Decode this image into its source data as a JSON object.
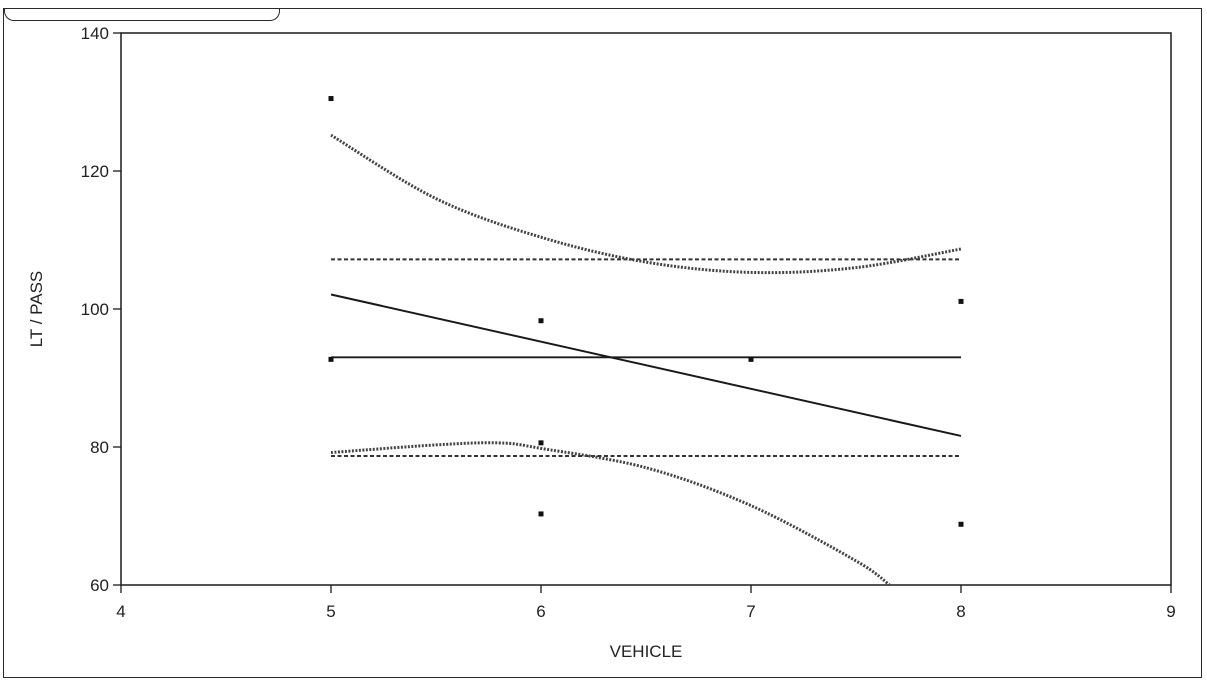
{
  "chart_data": {
    "type": "scatter",
    "xlabel": "VEHICLE",
    "ylabel": "LT / PASS",
    "xlim": [
      4,
      9
    ],
    "ylim": [
      60,
      140
    ],
    "x_ticks": [
      4,
      5,
      6,
      7,
      8,
      9
    ],
    "y_ticks": [
      60,
      80,
      100,
      120,
      140
    ],
    "grid": false,
    "points": [
      {
        "x": 5,
        "y": 130.5
      },
      {
        "x": 5,
        "y": 92.7
      },
      {
        "x": 6,
        "y": 98.3
      },
      {
        "x": 6,
        "y": 80.6
      },
      {
        "x": 6,
        "y": 70.3
      },
      {
        "x": 7,
        "y": 92.7
      },
      {
        "x": 8,
        "y": 101.1
      },
      {
        "x": 8,
        "y": 68.8
      }
    ],
    "mean_line": {
      "x": [
        5,
        8
      ],
      "y": 93.0
    },
    "mean_bounds": {
      "x": [
        5,
        8
      ],
      "upper": 107.2,
      "lower": 78.7
    },
    "regression_line": {
      "x": [
        5,
        8
      ],
      "y": [
        102.1,
        81.6
      ]
    },
    "confidence_upper": {
      "x": [
        5,
        5.5,
        6,
        6.5,
        7,
        7.5,
        8
      ],
      "y": [
        125.2,
        116.0,
        110.4,
        106.8,
        105.3,
        106.0,
        108.7
      ]
    },
    "confidence_lower": {
      "x": [
        5,
        5.5,
        5.8,
        6,
        6.5,
        7,
        7.5,
        7.66
      ],
      "y": [
        79.2,
        80.3,
        80.6,
        79.8,
        77.0,
        71.5,
        63.5,
        60.0
      ]
    }
  }
}
